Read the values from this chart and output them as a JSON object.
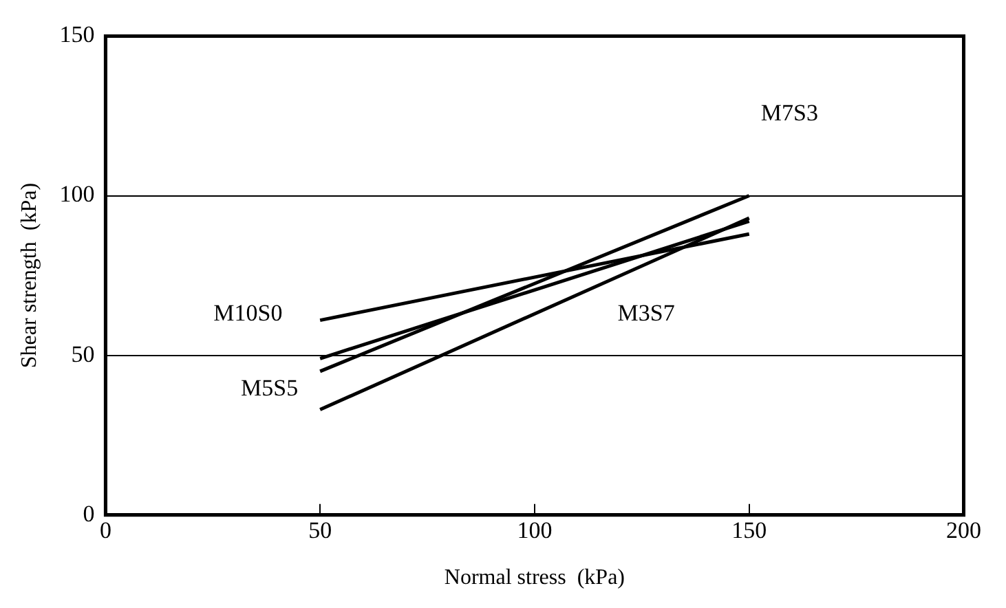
{
  "chart_data": {
    "type": "line",
    "xlabel": "Normal stress  (kPa)",
    "ylabel": "Shear strength  (kPa)",
    "xlim": [
      0,
      200
    ],
    "xticks": [
      0,
      50,
      100,
      150,
      200
    ],
    "ylim": [
      0,
      150
    ],
    "yticks": [
      0,
      50,
      100,
      150
    ],
    "grid": "y",
    "marker": "none",
    "line_style": "solid",
    "x": [
      50,
      150
    ],
    "series": [
      {
        "color": "#000000",
        "values": [
          61,
          88
        ]
      },
      {
        "color": "#000000",
        "values": [
          49,
          92
        ]
      },
      {
        "color": "#000000",
        "values": [
          45,
          100
        ]
      },
      {
        "color": "#000000",
        "values": [
          33,
          93
        ]
      }
    ],
    "annotations": [
      "M10S0",
      "M5S5",
      "M3S7",
      "M7S3"
    ]
  }
}
